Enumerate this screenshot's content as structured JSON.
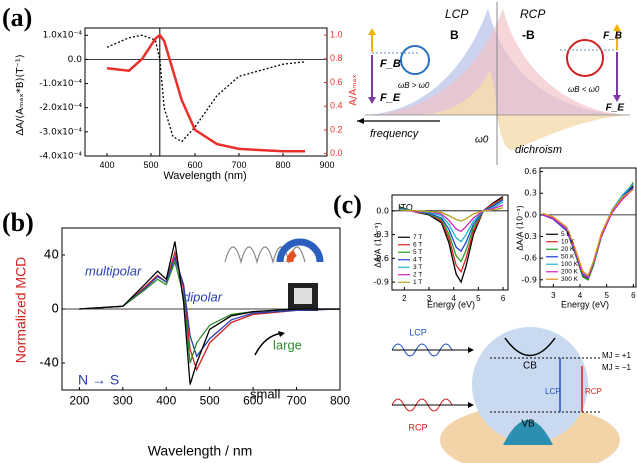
{
  "panel_labels": [
    "(a)",
    "(b)",
    "(c)"
  ],
  "chart_data": [
    {
      "type": "line",
      "xlabel": "Wavelength  (nm)",
      "ylabel": "ΔA/(Aₘₐₓ*B)(T⁻¹)",
      "y2label": "A/Aₘₐₓ",
      "x": [
        400,
        450,
        480,
        510,
        520,
        530,
        550,
        570,
        600,
        650,
        700,
        800,
        850
      ],
      "series": [
        {
          "color": "#000000",
          "line_style": "dotted",
          "values": [
            5e-05,
            9e-05,
            0.0001,
            8e-05,
            0,
            -0.0002,
            -0.00032,
            -0.00034,
            -0.00028,
            -0.00015,
            -7e-05,
            -2e-05,
            -1e-05
          ]
        },
        {
          "color": "#e8302a",
          "axis": "y2",
          "values": [
            0.72,
            0.7,
            0.8,
            0.97,
            1.0,
            0.95,
            0.7,
            0.45,
            0.2,
            0.08,
            0.04,
            0.02,
            0.02
          ]
        }
      ],
      "vline": 520,
      "xlim": [
        350,
        900
      ],
      "xticks": [
        400,
        500,
        600,
        700,
        800,
        900
      ],
      "ylim": [
        -0.0004,
        0.00013
      ],
      "yticks": [
        {
          "value": 0.0001,
          "label": "1.0x10⁻⁴"
        },
        {
          "value": 0,
          "label": "0.0"
        },
        {
          "value": -0.0001,
          "label": "-1.0x10⁻⁴"
        },
        {
          "value": -0.0002,
          "label": "-2.0x10⁻⁴"
        },
        {
          "value": -0.0003,
          "label": "-3.0x10⁻⁴"
        },
        {
          "value": -0.0004,
          "label": "-4.0x10⁻⁴"
        }
      ],
      "y2lim": [
        -0.02,
        1.06
      ],
      "y2ticks": [
        {
          "value": 1,
          "label": "1.0"
        },
        0.8,
        0.6,
        0.4,
        0.2,
        {
          "value": 0,
          "label": "0.0"
        }
      ]
    },
    {
      "type": "line",
      "xlabel": "Wavelength  / nm",
      "ylabel": "Normalized MCD",
      "annotations": [
        "multipolar",
        "dipolar",
        "large",
        "small",
        "N → S"
      ],
      "x": [
        200,
        300,
        350,
        380,
        400,
        420,
        440,
        455,
        470,
        500,
        550,
        600,
        700,
        800
      ],
      "series": [
        {
          "color": "#d62020",
          "values": [
            0,
            2,
            16,
            25,
            20,
            42,
            15,
            -30,
            -45,
            -25,
            -10,
            -4,
            -1,
            0
          ]
        },
        {
          "color": "#2a3fb0",
          "values": [
            0,
            2,
            15,
            24,
            20,
            38,
            18,
            -20,
            -35,
            -22,
            -8,
            -3,
            -1,
            0
          ]
        },
        {
          "color": "#2f8a2f",
          "values": [
            0,
            2,
            14,
            22,
            18,
            35,
            10,
            -40,
            -25,
            -12,
            -4,
            -2,
            0,
            0
          ]
        },
        {
          "color": "#000000",
          "values": [
            0,
            2,
            18,
            28,
            22,
            50,
            5,
            -56,
            -40,
            -15,
            -5,
            -2,
            0,
            0
          ]
        }
      ],
      "xlim": [
        160,
        800
      ],
      "xticks": [
        200,
        300,
        400,
        500,
        600,
        700,
        800
      ],
      "ylim": [
        -60,
        60
      ],
      "yticks": [
        40,
        0,
        -40
      ]
    },
    {
      "type": "line",
      "xlabel": "Energy (eV)",
      "ylabel": "ΔA/A (10⁻³)",
      "note": "ITO",
      "legend": "lower left",
      "x": [
        1.8,
        2.5,
        3,
        3.5,
        3.8,
        4.1,
        4.3,
        4.5,
        4.8,
        5.2,
        5.6,
        6.0
      ],
      "series": [
        {
          "name": "7 T",
          "color": "#000000",
          "values": [
            0.05,
            -0.02,
            -0.05,
            -0.15,
            -0.4,
            -0.8,
            -0.9,
            -0.7,
            -0.3,
            0.0,
            0.1,
            0.18
          ]
        },
        {
          "name": "6 T",
          "color": "#e02020",
          "values": [
            0.04,
            -0.02,
            -0.04,
            -0.13,
            -0.34,
            -0.69,
            -0.77,
            -0.6,
            -0.26,
            0.0,
            0.09,
            0.16
          ]
        },
        {
          "name": "5 T",
          "color": "#20a020",
          "values": [
            0.04,
            -0.01,
            -0.04,
            -0.11,
            -0.29,
            -0.57,
            -0.64,
            -0.5,
            -0.21,
            0.0,
            0.07,
            0.15
          ]
        },
        {
          "name": "4 T",
          "color": "#2040e0",
          "values": [
            0.03,
            -0.01,
            -0.03,
            -0.09,
            -0.23,
            -0.46,
            -0.51,
            -0.4,
            -0.17,
            0.0,
            0.06,
            0.14
          ]
        },
        {
          "name": "3 T",
          "color": "#20b8c8",
          "values": [
            0.02,
            -0.01,
            -0.02,
            -0.06,
            -0.17,
            -0.34,
            -0.39,
            -0.3,
            -0.13,
            0.0,
            0.04,
            0.11
          ]
        },
        {
          "name": "2 T",
          "color": "#d020c0",
          "values": [
            0.01,
            -0.01,
            -0.01,
            -0.04,
            -0.12,
            -0.23,
            -0.26,
            -0.2,
            -0.09,
            0.0,
            0.03,
            0.07
          ]
        },
        {
          "name": "1 T",
          "color": "#b0a020",
          "values": [
            0.01,
            0.0,
            -0.01,
            -0.02,
            -0.06,
            -0.11,
            -0.13,
            -0.1,
            -0.04,
            0.0,
            0.01,
            0.04
          ]
        }
      ],
      "xlim": [
        1.5,
        6.2
      ],
      "xticks": [
        2,
        3,
        4,
        5,
        6
      ],
      "ylim": [
        -1.0,
        0.2
      ],
      "yticks": [
        {
          "value": 0,
          "label": "0.0"
        },
        -0.3,
        -0.6,
        -0.9
      ]
    },
    {
      "type": "line",
      "xlabel": "Energy (eV)",
      "ylabel": "ΔA/A (10⁻³)",
      "legend": "lower left",
      "x": [
        2.6,
        3,
        3.5,
        3.8,
        4.1,
        4.3,
        4.5,
        4.8,
        5.2,
        5.6,
        6.0
      ],
      "series": [
        {
          "name": "5 K",
          "color": "#000000",
          "values": [
            0.0,
            -0.05,
            -0.2,
            -0.5,
            -0.85,
            -0.9,
            -0.7,
            -0.3,
            0.05,
            0.25,
            0.4
          ]
        },
        {
          "name": "10 K",
          "color": "#e02020",
          "values": [
            0.0,
            -0.04,
            -0.19,
            -0.49,
            -0.84,
            -0.89,
            -0.69,
            -0.29,
            0.06,
            0.27,
            0.42
          ]
        },
        {
          "name": "20 K",
          "color": "#20a020",
          "values": [
            0.01,
            -0.05,
            -0.21,
            -0.52,
            -0.86,
            -0.9,
            -0.71,
            -0.31,
            0.04,
            0.24,
            0.45
          ]
        },
        {
          "name": "50 K",
          "color": "#2040e0",
          "values": [
            0.0,
            -0.06,
            -0.22,
            -0.5,
            -0.83,
            -0.88,
            -0.68,
            -0.28,
            0.05,
            0.26,
            0.38
          ]
        },
        {
          "name": "100 K",
          "color": "#20b8c8",
          "values": [
            0.01,
            -0.04,
            -0.18,
            -0.47,
            -0.8,
            -0.86,
            -0.66,
            -0.27,
            0.07,
            0.28,
            0.43
          ]
        },
        {
          "name": "200 K",
          "color": "#d020c0",
          "values": [
            0.0,
            -0.05,
            -0.2,
            -0.48,
            -0.82,
            -0.87,
            -0.67,
            -0.3,
            0.03,
            0.22,
            0.36
          ]
        },
        {
          "name": "300 K",
          "color": "#e09020",
          "values": [
            0.02,
            -0.03,
            -0.17,
            -0.45,
            -0.78,
            -0.84,
            -0.65,
            -0.26,
            0.06,
            0.25,
            0.35
          ]
        }
      ],
      "xlim": [
        2.5,
        6.1
      ],
      "xticks": [
        3,
        4,
        5,
        6
      ],
      "ylim": [
        -1.0,
        0.65
      ],
      "yticks": [
        0.6,
        0.3,
        {
          "value": 0,
          "label": "0.0"
        },
        -0.3,
        -0.6,
        -0.9
      ]
    }
  ],
  "diagram_a": {
    "lcp": "LCP",
    "rcp": "RCP",
    "b": "B",
    "minus_b": "-B",
    "fb": "F_B",
    "fe": "F_E",
    "left_condition": "ωB > ω0",
    "right_condition": "ωB < ω0",
    "frequency": "frequency",
    "omega0": "ω0",
    "dichroism": "dichroism"
  },
  "diagram_c": {
    "lcp": "LCP",
    "rcp": "RCP",
    "cb": "CB",
    "vb": "VB",
    "mj_plus": "MJ = +1",
    "mj_minus": "MJ = −1",
    "level_lcp": "LCP",
    "level_rcp": "RCP"
  }
}
